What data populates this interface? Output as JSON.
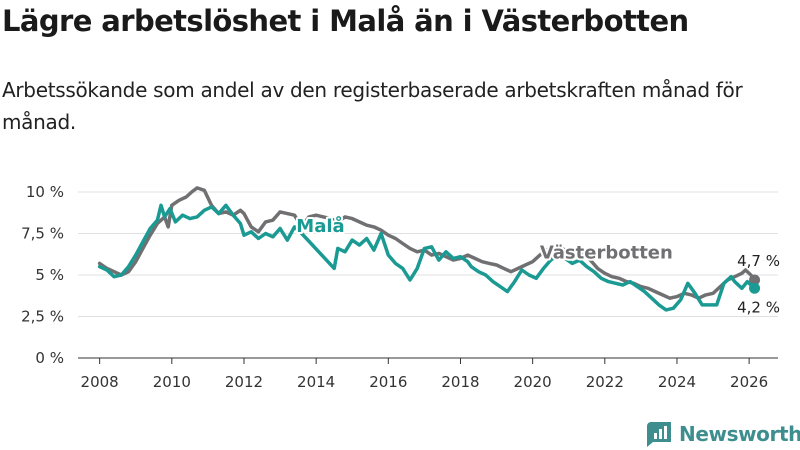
{
  "header": {
    "title": "Lägre arbetslöshet i Malå än i Västerbotten",
    "subtitle": "Arbetssökande som andel av den registerbaserade arbetskraften månad för månad."
  },
  "brand": {
    "name": "Newsworthy",
    "logo_icon": "bar-chart-logo-icon",
    "color": "#3f8e8f"
  },
  "chart_data": {
    "type": "line",
    "xlabel": "",
    "ylabel": "",
    "xlim": [
      2007.4,
      2026.8
    ],
    "ylim": [
      0,
      10
    ],
    "x_ticks": [
      2008,
      2010,
      2012,
      2014,
      2016,
      2018,
      2020,
      2022,
      2024,
      2026
    ],
    "x_tick_labels": [
      "2008",
      "2010",
      "2012",
      "2014",
      "2016",
      "2018",
      "2020",
      "2022",
      "2024",
      "2026"
    ],
    "y_ticks": [
      0,
      2.5,
      5,
      7.5,
      10
    ],
    "y_tick_labels": [
      "0 %",
      "2,5 %",
      "5 %",
      "7,5 %",
      "10 %"
    ],
    "grid": true,
    "series": [
      {
        "name": "Västerbotten",
        "color": "#707073",
        "label": "Västerbotten",
        "label_at": [
          2020.2,
          6.0
        ],
        "end_label": "4,7 %",
        "end_label_position": "above",
        "points": [
          [
            2008.0,
            5.7
          ],
          [
            2008.2,
            5.4
          ],
          [
            2008.4,
            5.2
          ],
          [
            2008.6,
            5.0
          ],
          [
            2008.8,
            5.2
          ],
          [
            2009.0,
            5.8
          ],
          [
            2009.2,
            6.6
          ],
          [
            2009.4,
            7.4
          ],
          [
            2009.6,
            8.1
          ],
          [
            2009.8,
            8.5
          ],
          [
            2009.9,
            7.9
          ],
          [
            2010.0,
            9.2
          ],
          [
            2010.2,
            9.5
          ],
          [
            2010.4,
            9.7
          ],
          [
            2010.55,
            10.0
          ],
          [
            2010.7,
            10.25
          ],
          [
            2010.9,
            10.1
          ],
          [
            2011.1,
            9.2
          ],
          [
            2011.3,
            8.7
          ],
          [
            2011.5,
            8.8
          ],
          [
            2011.7,
            8.6
          ],
          [
            2011.9,
            8.9
          ],
          [
            2012.0,
            8.7
          ],
          [
            2012.2,
            7.9
          ],
          [
            2012.4,
            7.6
          ],
          [
            2012.6,
            8.2
          ],
          [
            2012.8,
            8.3
          ],
          [
            2013.0,
            8.8
          ],
          [
            2013.2,
            8.7
          ],
          [
            2013.4,
            8.6
          ],
          [
            2013.6,
            7.9
          ],
          [
            2013.8,
            8.5
          ],
          [
            2014.0,
            8.6
          ],
          [
            2014.2,
            8.5
          ],
          [
            2014.4,
            8.4
          ],
          [
            2014.6,
            8.2
          ],
          [
            2014.8,
            8.5
          ],
          [
            2015.0,
            8.4
          ],
          [
            2015.2,
            8.2
          ],
          [
            2015.4,
            8.0
          ],
          [
            2015.6,
            7.9
          ],
          [
            2015.8,
            7.7
          ],
          [
            2016.0,
            7.4
          ],
          [
            2016.2,
            7.2
          ],
          [
            2016.4,
            6.9
          ],
          [
            2016.6,
            6.6
          ],
          [
            2016.8,
            6.4
          ],
          [
            2017.0,
            6.5
          ],
          [
            2017.2,
            6.2
          ],
          [
            2017.4,
            6.3
          ],
          [
            2017.6,
            6.1
          ],
          [
            2017.8,
            5.9
          ],
          [
            2018.0,
            6.0
          ],
          [
            2018.2,
            6.2
          ],
          [
            2018.4,
            6.0
          ],
          [
            2018.6,
            5.8
          ],
          [
            2018.8,
            5.7
          ],
          [
            2019.0,
            5.6
          ],
          [
            2019.2,
            5.4
          ],
          [
            2019.4,
            5.2
          ],
          [
            2019.6,
            5.4
          ],
          [
            2019.8,
            5.6
          ],
          [
            2020.0,
            5.8
          ],
          [
            2020.2,
            6.2
          ],
          [
            2020.4,
            6.5
          ],
          [
            2020.6,
            6.8
          ],
          [
            2020.8,
            6.6
          ],
          [
            2021.0,
            6.4
          ],
          [
            2021.2,
            6.5
          ],
          [
            2021.4,
            6.3
          ],
          [
            2021.6,
            5.9
          ],
          [
            2021.8,
            5.4
          ],
          [
            2022.0,
            5.1
          ],
          [
            2022.2,
            4.9
          ],
          [
            2022.4,
            4.8
          ],
          [
            2022.6,
            4.6
          ],
          [
            2022.8,
            4.5
          ],
          [
            2023.0,
            4.3
          ],
          [
            2023.2,
            4.2
          ],
          [
            2023.4,
            4.0
          ],
          [
            2023.6,
            3.8
          ],
          [
            2023.8,
            3.6
          ],
          [
            2024.0,
            3.7
          ],
          [
            2024.2,
            3.9
          ],
          [
            2024.4,
            3.8
          ],
          [
            2024.6,
            3.6
          ],
          [
            2024.8,
            3.8
          ],
          [
            2025.0,
            3.9
          ],
          [
            2025.2,
            4.3
          ],
          [
            2025.4,
            4.7
          ],
          [
            2025.6,
            4.9
          ],
          [
            2025.8,
            5.1
          ],
          [
            2025.9,
            5.3
          ],
          [
            2026.05,
            5.0
          ],
          [
            2026.15,
            4.7
          ]
        ]
      },
      {
        "name": "Malå",
        "color": "#1a9a93",
        "label": "Malå",
        "label_at": [
          2013.45,
          7.6
        ],
        "end_label": "4,2 %",
        "end_label_position": "below",
        "points": [
          [
            2008.0,
            5.5
          ],
          [
            2008.2,
            5.3
          ],
          [
            2008.4,
            4.9
          ],
          [
            2008.6,
            5.0
          ],
          [
            2008.8,
            5.5
          ],
          [
            2009.0,
            6.2
          ],
          [
            2009.2,
            7.0
          ],
          [
            2009.4,
            7.8
          ],
          [
            2009.6,
            8.3
          ],
          [
            2009.7,
            9.2
          ],
          [
            2009.8,
            8.5
          ],
          [
            2009.95,
            9.0
          ],
          [
            2010.1,
            8.2
          ],
          [
            2010.3,
            8.6
          ],
          [
            2010.5,
            8.4
          ],
          [
            2010.7,
            8.5
          ],
          [
            2010.9,
            8.9
          ],
          [
            2011.1,
            9.1
          ],
          [
            2011.3,
            8.7
          ],
          [
            2011.5,
            9.2
          ],
          [
            2011.7,
            8.6
          ],
          [
            2011.9,
            8.1
          ],
          [
            2012.0,
            7.4
          ],
          [
            2012.2,
            7.6
          ],
          [
            2012.4,
            7.2
          ],
          [
            2012.6,
            7.5
          ],
          [
            2012.8,
            7.3
          ],
          [
            2013.0,
            7.8
          ],
          [
            2013.2,
            7.1
          ],
          [
            2013.4,
            7.9
          ],
          [
            2013.6,
            7.5
          ],
          [
            2014.5,
            5.4
          ],
          [
            2014.6,
            6.6
          ],
          [
            2014.8,
            6.4
          ],
          [
            2015.0,
            7.1
          ],
          [
            2015.2,
            6.8
          ],
          [
            2015.4,
            7.2
          ],
          [
            2015.6,
            6.5
          ],
          [
            2015.8,
            7.5
          ],
          [
            2016.0,
            6.2
          ],
          [
            2016.2,
            5.7
          ],
          [
            2016.4,
            5.4
          ],
          [
            2016.6,
            4.7
          ],
          [
            2016.8,
            5.4
          ],
          [
            2017.0,
            6.6
          ],
          [
            2017.2,
            6.7
          ],
          [
            2017.4,
            5.9
          ],
          [
            2017.6,
            6.4
          ],
          [
            2017.8,
            6.0
          ],
          [
            2018.0,
            6.1
          ],
          [
            2018.2,
            5.8
          ],
          [
            2018.3,
            5.5
          ],
          [
            2018.5,
            5.2
          ],
          [
            2018.7,
            5.0
          ],
          [
            2018.9,
            4.6
          ],
          [
            2019.1,
            4.3
          ],
          [
            2019.3,
            4.0
          ],
          [
            2019.5,
            4.6
          ],
          [
            2019.7,
            5.3
          ],
          [
            2019.9,
            5.0
          ],
          [
            2020.1,
            4.8
          ],
          [
            2020.3,
            5.4
          ],
          [
            2020.5,
            5.9
          ],
          [
            2020.7,
            6.2
          ],
          [
            2020.9,
            6.0
          ],
          [
            2021.1,
            5.7
          ],
          [
            2021.3,
            5.9
          ],
          [
            2021.5,
            5.5
          ],
          [
            2021.7,
            5.2
          ],
          [
            2021.9,
            4.8
          ],
          [
            2022.1,
            4.6
          ],
          [
            2022.3,
            4.5
          ],
          [
            2022.5,
            4.4
          ],
          [
            2022.7,
            4.6
          ],
          [
            2022.9,
            4.3
          ],
          [
            2023.1,
            4.0
          ],
          [
            2023.3,
            3.6
          ],
          [
            2023.5,
            3.2
          ],
          [
            2023.7,
            2.9
          ],
          [
            2023.9,
            3.0
          ],
          [
            2024.1,
            3.5
          ],
          [
            2024.3,
            4.5
          ],
          [
            2024.5,
            3.9
          ],
          [
            2024.7,
            3.2
          ],
          [
            2024.9,
            3.2
          ],
          [
            2025.1,
            3.2
          ],
          [
            2025.3,
            4.5
          ],
          [
            2025.5,
            4.9
          ],
          [
            2025.6,
            4.6
          ],
          [
            2025.8,
            4.2
          ],
          [
            2025.95,
            4.6
          ],
          [
            2026.15,
            4.2
          ]
        ]
      }
    ]
  }
}
